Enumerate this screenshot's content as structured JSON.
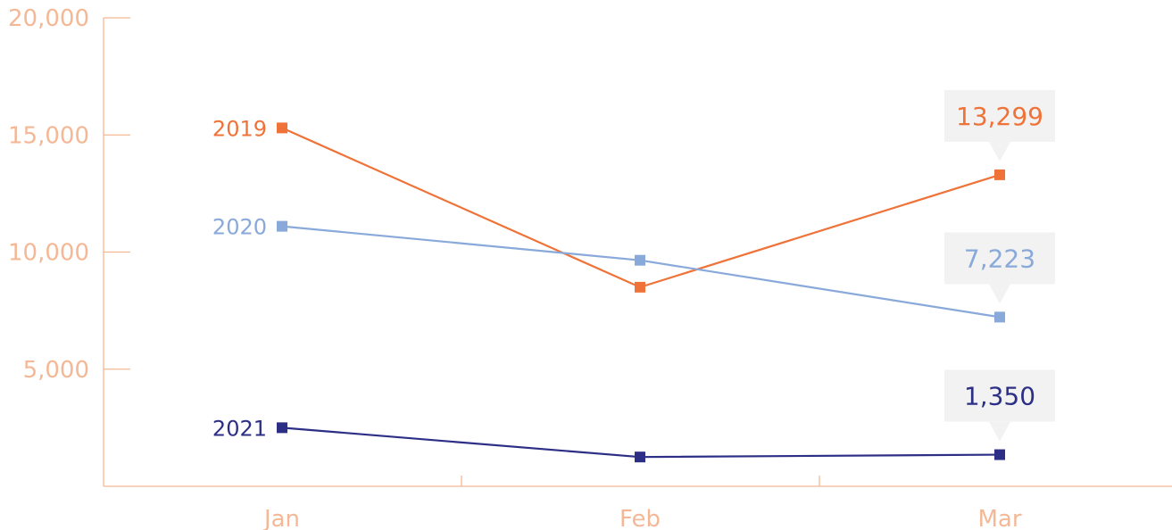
{
  "chart_data": {
    "type": "line",
    "categories": [
      "Jan",
      "Feb",
      "Mar"
    ],
    "ylim": [
      0,
      20000
    ],
    "y_ticks": [
      "5,000",
      "10,000",
      "15,000",
      "20,000"
    ],
    "grid": false,
    "legend": "inline-left",
    "series": [
      {
        "name": "2019",
        "values": [
          15300,
          8500,
          13299
        ],
        "color": "#ef7338",
        "end_label": "13,299"
      },
      {
        "name": "2020",
        "values": [
          11100,
          9650,
          7223
        ],
        "color": "#88a9d9",
        "end_label": "7,223"
      },
      {
        "name": "2021",
        "values": [
          2500,
          1250,
          1350
        ],
        "color": "#2c2f85",
        "end_label": "1,350"
      }
    ],
    "axis_color": "#f5b896",
    "callout_bg": "#f2f2f2"
  }
}
